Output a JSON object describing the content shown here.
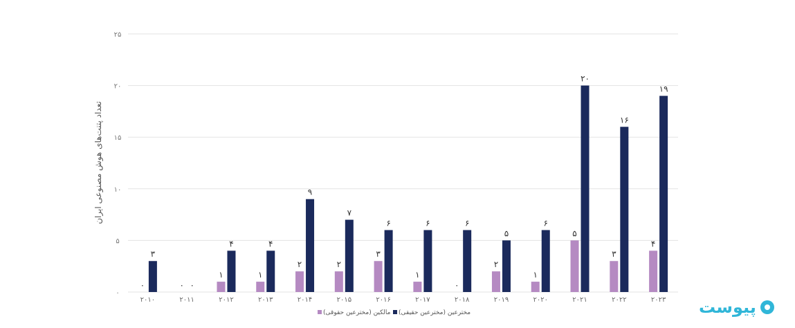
{
  "chart_data": {
    "type": "bar",
    "categories": [
      "۲۰۱۰",
      "۲۰۱۱",
      "۲۰۱۲",
      "۲۰۱۳",
      "۲۰۱۴",
      "۲۰۱۵",
      "۲۰۱۶",
      "۲۰۱۷",
      "۲۰۱۸",
      "۲۰۱۹",
      "۲۰۲۰",
      "۲۰۲۱",
      "۲۰۲۲",
      "۲۰۲۳"
    ],
    "series": [
      {
        "name": "مالکین (مخترعین حقوقی)",
        "color": "#b58ac2",
        "values": [
          0,
          0,
          1,
          1,
          2,
          2,
          3,
          1,
          0,
          2,
          1,
          5,
          3,
          4
        ],
        "labels": [
          "۰",
          "۰",
          "۱",
          "۱",
          "۲",
          "۲",
          "۳",
          "۱",
          "۰",
          "۲",
          "۱",
          "۵",
          "۳",
          "۴"
        ]
      },
      {
        "name": "مخترعین (مخترعین حقیقی)",
        "color": "#1b2a5c",
        "values": [
          3,
          0,
          4,
          4,
          9,
          7,
          6,
          6,
          6,
          5,
          6,
          20,
          16,
          19
        ],
        "labels": [
          "۳",
          "۰",
          "۴",
          "۴",
          "۹",
          "۷",
          "۶",
          "۶",
          "۶",
          "۵",
          "۶",
          "۲۰",
          "۱۶",
          "۱۹"
        ]
      }
    ],
    "ylabel": "تعداد پتنت‌های هوش مصنوعی ایران",
    "ylim": [
      0,
      25
    ],
    "yticks": [
      0,
      5,
      10,
      15,
      20,
      25
    ],
    "ytick_labels": [
      "۰",
      "۵",
      "۱۰",
      "۱۵",
      "۲۰",
      "۲۵"
    ],
    "grid": true,
    "legend_position": "bottom"
  },
  "watermark": {
    "text": "پیوست",
    "color": "#30b6d8"
  }
}
